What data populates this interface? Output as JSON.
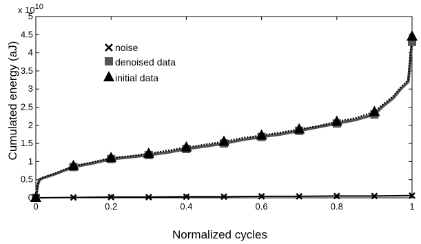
{
  "chart_data": {
    "type": "line",
    "xlabel": "Normalized cycles",
    "ylabel": "Cumulated energy (aJ)",
    "y_multiplier": "x 10",
    "y_multiplier_exp": "10",
    "xlim": [
      0,
      1
    ],
    "ylim": [
      0,
      5
    ],
    "x_ticks": [
      "0",
      "0.2",
      "0.4",
      "0.6",
      "0.8",
      "1"
    ],
    "y_ticks": [
      "0",
      "0.5",
      "1",
      "1.5",
      "2",
      "2.5",
      "3",
      "3.5",
      "4",
      "4.5",
      "5"
    ],
    "grid": false,
    "legend_position": "top-left",
    "series": [
      {
        "name": "noise",
        "marker": "x",
        "color": "#000000",
        "x": [
          0,
          0.1,
          0.2,
          0.3,
          0.4,
          0.5,
          0.6,
          0.7,
          0.8,
          0.9,
          1.0
        ],
        "y": [
          0.0,
          0.01,
          0.02,
          0.02,
          0.03,
          0.03,
          0.04,
          0.04,
          0.05,
          0.05,
          0.06
        ]
      },
      {
        "name": "denoised data",
        "marker": "square",
        "color": "#555555",
        "x": [
          0,
          0.005,
          0.01,
          0.02,
          0.05,
          0.1,
          0.15,
          0.2,
          0.25,
          0.3,
          0.35,
          0.4,
          0.45,
          0.5,
          0.55,
          0.6,
          0.65,
          0.7,
          0.75,
          0.8,
          0.85,
          0.9,
          0.92,
          0.95,
          0.97,
          0.99,
          1.0
        ],
        "y": [
          0.0,
          0.35,
          0.5,
          0.55,
          0.65,
          0.85,
          0.95,
          1.07,
          1.12,
          1.18,
          1.25,
          1.35,
          1.42,
          1.5,
          1.6,
          1.68,
          1.75,
          1.85,
          1.95,
          2.05,
          2.15,
          2.3,
          2.5,
          2.75,
          3.0,
          3.2,
          4.3
        ]
      },
      {
        "name": "initial data",
        "marker": "triangle",
        "color": "#000000",
        "x": [
          0,
          0.005,
          0.01,
          0.02,
          0.05,
          0.1,
          0.15,
          0.2,
          0.25,
          0.3,
          0.35,
          0.4,
          0.45,
          0.5,
          0.55,
          0.6,
          0.65,
          0.7,
          0.75,
          0.8,
          0.85,
          0.9,
          0.92,
          0.95,
          0.97,
          0.99,
          1.0
        ],
        "y": [
          0.0,
          0.37,
          0.52,
          0.56,
          0.67,
          0.88,
          0.98,
          1.1,
          1.15,
          1.22,
          1.3,
          1.39,
          1.47,
          1.55,
          1.65,
          1.72,
          1.8,
          1.89,
          1.98,
          2.1,
          2.2,
          2.37,
          2.55,
          2.8,
          3.05,
          3.25,
          4.45
        ]
      }
    ],
    "marker_x": [
      0,
      0.1,
      0.2,
      0.3,
      0.4,
      0.5,
      0.6,
      0.7,
      0.8,
      0.9,
      1.0
    ]
  }
}
